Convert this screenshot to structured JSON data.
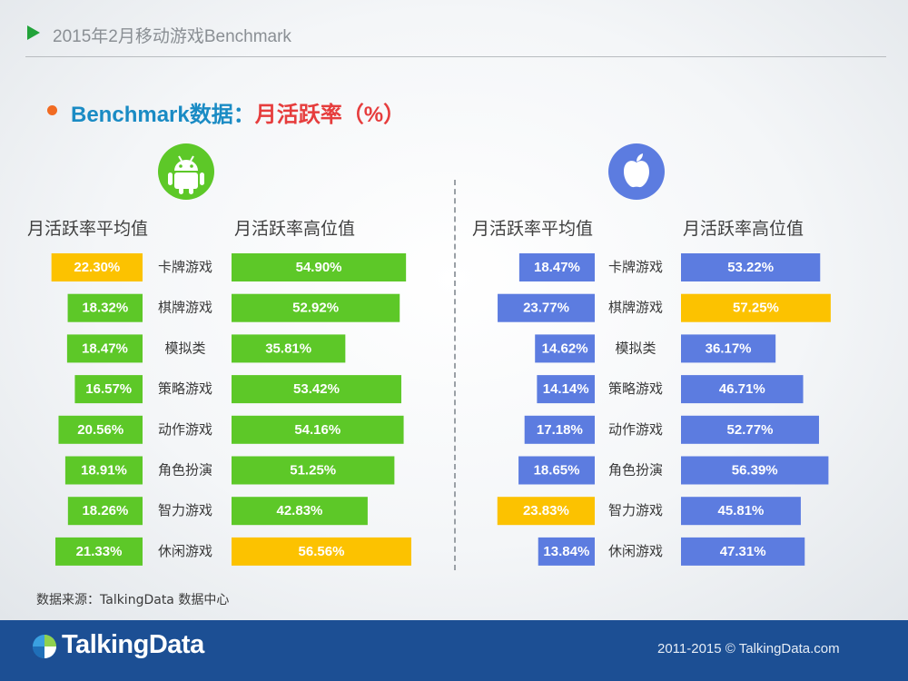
{
  "header": {
    "title": "2015年2月移动游戏Benchmark"
  },
  "section": {
    "title_prefix": "Benchmark数据：",
    "title_highlight": "月活跃率（%）"
  },
  "colors": {
    "android_bar": "#5dc828",
    "ios_bar": "#5c7ce0",
    "highlight_bar": "#fcc200",
    "footer": "#1c4f94",
    "bullet": "#f16b22"
  },
  "icons": {
    "android": "android-robot-icon",
    "ios": "apple-logo-icon",
    "header": "play-arrow-icon",
    "brand": "talkingdata-logo-icon"
  },
  "chart_data": [
    {
      "type": "bar",
      "platform": "Android",
      "categories": [
        "卡牌游戏",
        "棋牌游戏",
        "模拟类",
        "策略游戏",
        "动作游戏",
        "角色扮演",
        "智力游戏",
        "休闲游戏"
      ],
      "series": [
        {
          "name": "月活跃率平均值",
          "values": [
            22.3,
            18.32,
            18.47,
            16.57,
            20.56,
            18.91,
            18.26,
            21.33
          ],
          "labels": [
            "22.30%",
            "18.32%",
            "18.47%",
            "16.57%",
            "20.56%",
            "18.91%",
            "18.26%",
            "21.33%"
          ],
          "highlight": [
            0
          ]
        },
        {
          "name": "月活跃率高位值",
          "values": [
            54.9,
            52.92,
            35.81,
            53.42,
            54.16,
            51.25,
            42.83,
            56.56
          ],
          "labels": [
            "54.90%",
            "52.92%",
            "35.81%",
            "53.42%",
            "54.16%",
            "51.25%",
            "42.83%",
            "56.56%"
          ],
          "highlight": [
            7
          ]
        }
      ]
    },
    {
      "type": "bar",
      "platform": "iOS",
      "categories": [
        "卡牌游戏",
        "棋牌游戏",
        "模拟类",
        "策略游戏",
        "动作游戏",
        "角色扮演",
        "智力游戏",
        "休闲游戏"
      ],
      "series": [
        {
          "name": "月活跃率平均值",
          "values": [
            18.47,
            23.77,
            14.62,
            14.14,
            17.18,
            18.65,
            23.83,
            13.84
          ],
          "labels": [
            "18.47%",
            "23.77%",
            "14.62%",
            "14.14%",
            "17.18%",
            "18.65%",
            "23.83%",
            "13.84%"
          ],
          "highlight": [
            6
          ]
        },
        {
          "name": "月活跃率高位值",
          "values": [
            53.22,
            57.25,
            36.17,
            46.71,
            52.77,
            56.39,
            45.81,
            47.31
          ],
          "labels": [
            "53.22%",
            "57.25%",
            "36.17%",
            "46.71%",
            "52.77%",
            "56.39%",
            "45.81%",
            "47.31%"
          ],
          "highlight": [
            1
          ]
        }
      ]
    }
  ],
  "source": "数据来源：TalkingData 数据中心",
  "footer": {
    "brand": "TalkingData",
    "copyright": "2011-2015 © TalkingData.com"
  }
}
